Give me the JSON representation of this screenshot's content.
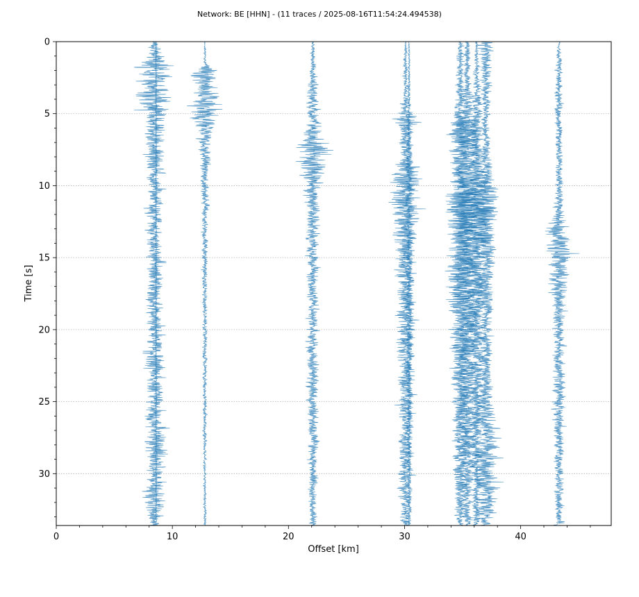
{
  "chart_data": {
    "type": "line",
    "title": "Network: BE [HHN] - (11 traces / 2025-08-16T11:54:24.494538)",
    "xlabel": "Offset [km]",
    "ylabel": "Time [s]",
    "xlim": [
      0,
      47.8
    ],
    "ylim": [
      33.6,
      0
    ],
    "y_inverted": true,
    "xticks": [
      0,
      10,
      20,
      30,
      40
    ],
    "yticks": [
      0,
      5,
      10,
      15,
      20,
      25,
      30
    ],
    "grid": "horizontal dotted at y ticks",
    "trace_color": "#1f77b4",
    "traces": [
      {
        "offset_km": 8.5,
        "amplitude_km": 1.2,
        "envelope": [
          [
            0,
            0.25
          ],
          [
            1.2,
            0.7
          ],
          [
            1.6,
            1.2
          ],
          [
            4.7,
            1.2
          ],
          [
            5.2,
            0.8
          ],
          [
            8,
            0.7
          ],
          [
            9,
            0.6
          ],
          [
            14,
            0.6
          ],
          [
            21,
            0.6
          ],
          [
            22,
            1.0
          ],
          [
            23,
            0.6
          ],
          [
            25,
            0.6
          ],
          [
            28,
            0.9
          ],
          [
            30,
            0.6
          ],
          [
            31.5,
            0.8
          ],
          [
            33.5,
            0.4
          ]
        ]
      },
      {
        "offset_km": 12.8,
        "amplitude_km": 1.2,
        "envelope": [
          [
            0,
            0.05
          ],
          [
            1.5,
            0.12
          ],
          [
            2.2,
            1.2
          ],
          [
            3.0,
            0.6
          ],
          [
            4.5,
            1.2
          ],
          [
            5.5,
            0.9
          ],
          [
            6.5,
            0.5
          ],
          [
            9,
            0.35
          ],
          [
            12,
            0.25
          ],
          [
            20,
            0.18
          ],
          [
            33.5,
            0.1
          ]
        ]
      },
      {
        "offset_km": 22.1,
        "amplitude_km": 1.2,
        "envelope": [
          [
            0,
            0.1
          ],
          [
            2,
            0.3
          ],
          [
            4,
            0.5
          ],
          [
            5.5,
            0.5
          ],
          [
            6.8,
            0.8
          ],
          [
            7.2,
            1.2
          ],
          [
            8.5,
            1.1
          ],
          [
            9.5,
            0.8
          ],
          [
            11,
            0.55
          ],
          [
            14,
            0.45
          ],
          [
            18,
            0.4
          ],
          [
            25,
            0.4
          ],
          [
            33.5,
            0.3
          ]
        ]
      },
      {
        "offset_km": 30.1,
        "amplitude_km": 1.2,
        "envelope": [
          [
            0,
            0.05
          ],
          [
            1,
            0.15
          ],
          [
            4,
            0.25
          ],
          [
            5.5,
            1.0
          ],
          [
            6.5,
            0.5
          ],
          [
            8,
            0.45
          ],
          [
            9.3,
            1.2
          ],
          [
            10.5,
            1.0
          ],
          [
            11.5,
            1.2
          ],
          [
            13,
            0.8
          ],
          [
            16,
            0.8
          ],
          [
            20,
            0.7
          ],
          [
            25,
            0.6
          ],
          [
            30,
            0.55
          ],
          [
            33.5,
            0.35
          ]
        ]
      },
      {
        "offset_km": 30.4,
        "amplitude_km": 1.2,
        "envelope": [
          [
            0,
            0.05
          ],
          [
            4,
            0.12
          ],
          [
            9,
            0.3
          ],
          [
            14,
            0.3
          ],
          [
            33.5,
            0.15
          ]
        ]
      },
      {
        "offset_km": 34.8,
        "amplitude_km": 1.2,
        "envelope": [
          [
            0,
            0.2
          ],
          [
            2,
            0.3
          ],
          [
            5,
            0.4
          ],
          [
            6.5,
            1.0
          ],
          [
            9,
            0.7
          ],
          [
            11.5,
            1.2
          ],
          [
            13,
            1.0
          ],
          [
            16,
            0.9
          ],
          [
            20,
            0.8
          ],
          [
            25,
            0.6
          ],
          [
            30,
            0.55
          ],
          [
            33.5,
            0.35
          ]
        ]
      },
      {
        "offset_km": 35.4,
        "amplitude_km": 1.2,
        "envelope": [
          [
            0,
            0.2
          ],
          [
            3,
            0.3
          ],
          [
            6.2,
            1.0
          ],
          [
            8,
            0.8
          ],
          [
            11.5,
            1.2
          ],
          [
            13.5,
            1.0
          ],
          [
            17,
            0.9
          ],
          [
            22,
            0.7
          ],
          [
            27,
            0.6
          ],
          [
            33.5,
            0.35
          ]
        ]
      },
      {
        "offset_km": 36.2,
        "amplitude_km": 1.2,
        "envelope": [
          [
            0,
            0.1
          ],
          [
            6,
            0.5
          ],
          [
            9,
            0.6
          ],
          [
            12,
            1.2
          ],
          [
            14,
            0.8
          ],
          [
            18,
            0.6
          ],
          [
            24,
            0.5
          ],
          [
            33.5,
            0.3
          ]
        ]
      },
      {
        "offset_km": 37.0,
        "amplitude_km": 1.2,
        "envelope": [
          [
            0,
            0.5
          ],
          [
            2,
            0.4
          ],
          [
            5,
            0.3
          ],
          [
            8,
            0.35
          ],
          [
            11.6,
            1.2
          ],
          [
            12.5,
            0.8
          ],
          [
            16,
            0.6
          ],
          [
            22,
            0.45
          ],
          [
            27,
            0.8
          ],
          [
            30,
            1.0
          ],
          [
            32,
            0.8
          ],
          [
            33.5,
            0.4
          ]
        ]
      },
      {
        "offset_km": 43.3,
        "amplitude_km": 1.2,
        "envelope": [
          [
            0,
            0.1
          ],
          [
            2,
            0.25
          ],
          [
            4,
            0.3
          ],
          [
            8,
            0.25
          ],
          [
            11.5,
            0.35
          ],
          [
            13.8,
            1.0
          ],
          [
            14.6,
            1.2
          ],
          [
            16,
            0.8
          ],
          [
            18,
            0.5
          ],
          [
            22,
            0.4
          ],
          [
            24,
            0.5
          ],
          [
            27,
            0.4
          ],
          [
            33.5,
            0.3
          ]
        ]
      },
      {
        "offset_km": 8.6,
        "amplitude_km": 1.2,
        "envelope": [
          [
            0,
            0.05
          ],
          [
            33.5,
            0.05
          ]
        ]
      }
    ]
  }
}
